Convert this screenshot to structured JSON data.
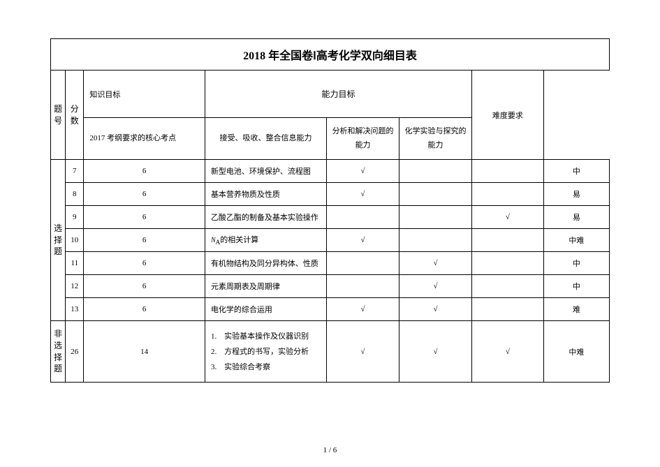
{
  "title": "2018 年全国卷Ⅰ高考化学双向细目表",
  "headers": {
    "question_no": "题号",
    "score": "分数",
    "knowledge_target": "知识目标",
    "ability_target": "能力目标",
    "difficulty_req": "难度要求",
    "core_points": "2017 考纲要求的核心考点",
    "ability1": "接受、吸收、整合信息能力",
    "ability2": "分析和解决问题的能力",
    "ability3": "化学实验与探究的能力"
  },
  "sections": {
    "choice": "选择题",
    "nonchoice": "非选择题"
  },
  "rows": [
    {
      "no": "7",
      "score": "6",
      "content": "新型电池、环境保护、流程图",
      "a1": "√",
      "a2": "",
      "a3": "",
      "diff": "中"
    },
    {
      "no": "8",
      "score": "6",
      "content": "基本营养物质及性质",
      "a1": "√",
      "a2": "",
      "a3": "",
      "diff": "易"
    },
    {
      "no": "9",
      "score": "6",
      "content": "乙酸乙酯的制备及基本实验操作",
      "a1": "",
      "a2": "",
      "a3": "√",
      "diff": "易"
    },
    {
      "no": "10",
      "score": "6",
      "content_prefix": "N",
      "content_sub": "A",
      "content_suffix": "的相关计算",
      "a1": "√",
      "a2": "",
      "a3": "",
      "diff": "中难"
    },
    {
      "no": "11",
      "score": "6",
      "content": "有机物结构及同分异构体、性质",
      "a1": "",
      "a2": "√",
      "a3": "",
      "diff": "中"
    },
    {
      "no": "12",
      "score": "6",
      "content": "元素周期表及周期律",
      "a1": "",
      "a2": "√",
      "a3": "",
      "diff": "中"
    },
    {
      "no": "13",
      "score": "6",
      "content": "电化学的综合运用",
      "a1": "√",
      "a2": "√",
      "a3": "",
      "diff": "难"
    }
  ],
  "nonchoice_row": {
    "no": "26",
    "score": "14",
    "lines": {
      "l1": "1.　实验基本操作及仪器识别",
      "l2": "2.　方程式的书写，实验分析",
      "l3": "3.　实验综合考察"
    },
    "a1": "√",
    "a2": "√",
    "a3": "√",
    "diff": "中难"
  },
  "page_number": "1 / 6",
  "colors": {
    "text": "#000000",
    "background": "#ffffff",
    "border": "#000000"
  }
}
